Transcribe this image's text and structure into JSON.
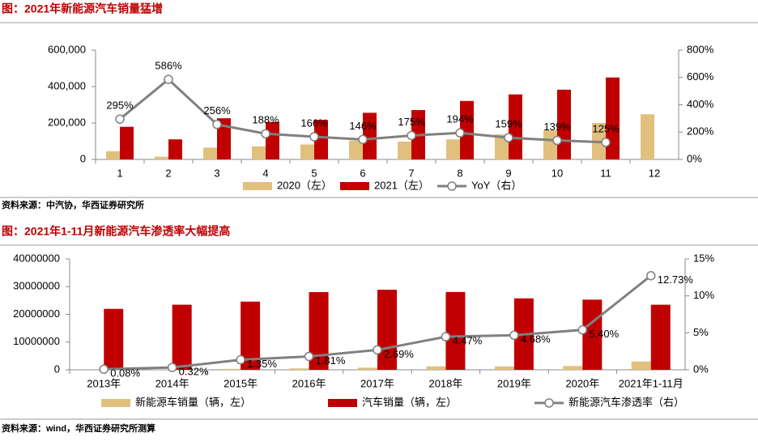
{
  "chart_data": [
    {
      "type": "bar",
      "title": "图：2021年新能源汽车销量猛增",
      "source": "资料来源：中汽协，华西证券研究所",
      "categories": [
        "1",
        "2",
        "3",
        "4",
        "5",
        "6",
        "7",
        "8",
        "9",
        "10",
        "11",
        "12"
      ],
      "series": [
        {
          "name": "2020（左）",
          "color": "#e1c07d",
          "values": [
            45000,
            15000,
            65000,
            72000,
            82000,
            103000,
            98000,
            110000,
            138000,
            160000,
            200000,
            248000
          ]
        },
        {
          "name": "2021（左）",
          "color": "#c00000",
          "values": [
            179000,
            110000,
            226000,
            206000,
            217000,
            256000,
            271000,
            321000,
            357000,
            383000,
            450000,
            null
          ]
        },
        {
          "name": "YoY（右）",
          "type": "line",
          "axis": "y2",
          "color": "#808080",
          "values": [
            295,
            586,
            256,
            188,
            166,
            146,
            175,
            194,
            159,
            139,
            125,
            null
          ],
          "value_labels": [
            "295%",
            "586%",
            "256%",
            "188%",
            "166%",
            "146%",
            "175%",
            "194%",
            "159%",
            "139%",
            "125%",
            null
          ]
        }
      ],
      "ylim": [
        0,
        600000
      ],
      "yticks": [
        0,
        {
          "value": 200000,
          "label": "200,000"
        },
        {
          "value": 400000,
          "label": "400,000"
        },
        {
          "value": 600000,
          "label": "600,000"
        }
      ],
      "y2lim": [
        0,
        800
      ],
      "y2ticks": [
        {
          "value": 0,
          "label": "0%"
        },
        {
          "value": 200,
          "label": "200%"
        },
        {
          "value": 400,
          "label": "400%"
        },
        {
          "value": 600,
          "label": "600%"
        },
        {
          "value": 800,
          "label": "800%"
        }
      ],
      "grid": false,
      "legend": "bottom"
    },
    {
      "type": "bar",
      "title": "图：2021年1-11月新能源汽车渗透率大幅提高",
      "source": "资料来源：wind，华西证券研究所测算",
      "categories": [
        "2013年",
        "2014年",
        "2015年",
        "2016年",
        "2017年",
        "2018年",
        "2019年",
        "2020年",
        "2021年1-11月"
      ],
      "series": [
        {
          "name": "新能源车销量（辆，左）",
          "color": "#e1c07d",
          "values": [
            17600,
            75000,
            331000,
            507000,
            777000,
            1256000,
            1206000,
            1367000,
            2990000
          ]
        },
        {
          "name": "汽车销量（辆，左）",
          "color": "#c00000",
          "values": [
            21980000,
            23490000,
            24600000,
            28030000,
            28880000,
            28080000,
            25770000,
            25310000,
            23480000
          ]
        },
        {
          "name": "新能源汽车渗透率（右）",
          "type": "line",
          "axis": "y2",
          "color": "#808080",
          "values": [
            0.08,
            0.32,
            1.35,
            1.81,
            2.69,
            4.47,
            4.68,
            5.4,
            12.73
          ],
          "value_labels": [
            "0.08%",
            "0.32%",
            "1.35%",
            "1.81%",
            "2.69%",
            "4.47%",
            "4.68%",
            "5.40%",
            "12.73%"
          ]
        }
      ],
      "ylim": [
        0,
        40000000
      ],
      "yticks": [
        0,
        10000000,
        20000000,
        30000000,
        40000000
      ],
      "y2lim": [
        0,
        15
      ],
      "y2ticks": [
        {
          "value": 0,
          "label": "0%"
        },
        {
          "value": 5,
          "label": "5%"
        },
        {
          "value": 10,
          "label": "10%"
        },
        {
          "value": 15,
          "label": "15%"
        }
      ],
      "grid": false,
      "legend": "bottom"
    }
  ]
}
